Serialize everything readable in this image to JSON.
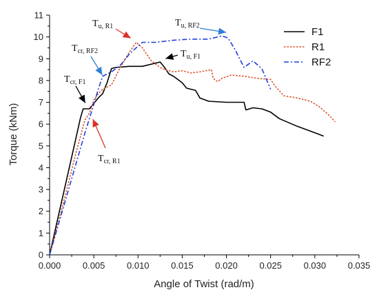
{
  "chart_data": {
    "type": "line",
    "xlabel": "Angle of Twist (rad/m)",
    "ylabel": "Torque (kNm)",
    "xlim": [
      0.0,
      0.035
    ],
    "ylim": [
      0,
      11
    ],
    "x_ticks": [
      "0.000",
      "0.005",
      "0.010",
      "0.015",
      "0.020",
      "0.025",
      "0.030",
      "0.035"
    ],
    "y_ticks": [
      "0",
      "1",
      "2",
      "3",
      "4",
      "5",
      "6",
      "7",
      "8",
      "9",
      "10",
      "11"
    ],
    "grid": false,
    "legend_position": "top-right",
    "series": [
      {
        "name": "F1",
        "color": "#000000",
        "style": "solid",
        "points": [
          [
            0.0,
            0.0
          ],
          [
            0.001,
            1.8
          ],
          [
            0.002,
            3.6
          ],
          [
            0.003,
            5.4
          ],
          [
            0.0035,
            6.3
          ],
          [
            0.0038,
            6.7
          ],
          [
            0.0045,
            6.7
          ],
          [
            0.0055,
            7.2
          ],
          [
            0.006,
            7.4
          ],
          [
            0.0065,
            7.9
          ],
          [
            0.007,
            8.55
          ],
          [
            0.0075,
            8.6
          ],
          [
            0.009,
            8.65
          ],
          [
            0.0105,
            8.65
          ],
          [
            0.012,
            8.8
          ],
          [
            0.0125,
            8.85
          ],
          [
            0.013,
            8.6
          ],
          [
            0.0135,
            8.3
          ],
          [
            0.014,
            8.2
          ],
          [
            0.015,
            7.9
          ],
          [
            0.0155,
            7.65
          ],
          [
            0.016,
            7.6
          ],
          [
            0.0165,
            7.55
          ],
          [
            0.017,
            7.2
          ],
          [
            0.018,
            7.05
          ],
          [
            0.02,
            7.0
          ],
          [
            0.021,
            7.0
          ],
          [
            0.022,
            7.0
          ],
          [
            0.0222,
            6.65
          ],
          [
            0.023,
            6.75
          ],
          [
            0.024,
            6.7
          ],
          [
            0.025,
            6.55
          ],
          [
            0.026,
            6.25
          ],
          [
            0.028,
            5.9
          ],
          [
            0.03,
            5.6
          ],
          [
            0.031,
            5.45
          ]
        ]
      },
      {
        "name": "R1",
        "color": "#d9532a",
        "style": "dotted",
        "points": [
          [
            0.0,
            0.0
          ],
          [
            0.001,
            1.5
          ],
          [
            0.002,
            3.1
          ],
          [
            0.003,
            4.7
          ],
          [
            0.004,
            6.2
          ],
          [
            0.0045,
            6.5
          ],
          [
            0.005,
            7.1
          ],
          [
            0.0055,
            7.4
          ],
          [
            0.006,
            7.6
          ],
          [
            0.007,
            7.8
          ],
          [
            0.008,
            8.6
          ],
          [
            0.009,
            9.3
          ],
          [
            0.0098,
            9.75
          ],
          [
            0.0105,
            9.5
          ],
          [
            0.0115,
            8.9
          ],
          [
            0.0125,
            8.6
          ],
          [
            0.013,
            8.5
          ],
          [
            0.014,
            8.4
          ],
          [
            0.015,
            8.45
          ],
          [
            0.016,
            8.35
          ],
          [
            0.017,
            8.4
          ],
          [
            0.0183,
            8.5
          ],
          [
            0.0185,
            8.1
          ],
          [
            0.019,
            7.95
          ],
          [
            0.0195,
            8.1
          ],
          [
            0.0205,
            8.25
          ],
          [
            0.022,
            8.2
          ],
          [
            0.0235,
            8.1
          ],
          [
            0.025,
            8.05
          ],
          [
            0.0255,
            7.75
          ],
          [
            0.0265,
            7.3
          ],
          [
            0.028,
            7.2
          ],
          [
            0.0295,
            7.05
          ],
          [
            0.0305,
            6.8
          ],
          [
            0.0315,
            6.45
          ],
          [
            0.0323,
            6.1
          ]
        ]
      },
      {
        "name": "RF2",
        "color": "#1f3fd6",
        "style": "dashdot",
        "points": [
          [
            0.0,
            0.0
          ],
          [
            0.001,
            1.4
          ],
          [
            0.002,
            2.8
          ],
          [
            0.003,
            4.2
          ],
          [
            0.004,
            5.6
          ],
          [
            0.005,
            6.9
          ],
          [
            0.0055,
            7.6
          ],
          [
            0.006,
            8.2
          ],
          [
            0.007,
            8.4
          ],
          [
            0.008,
            8.7
          ],
          [
            0.009,
            9.2
          ],
          [
            0.0095,
            9.4
          ],
          [
            0.0105,
            9.75
          ],
          [
            0.012,
            9.75
          ],
          [
            0.014,
            9.85
          ],
          [
            0.016,
            9.9
          ],
          [
            0.018,
            9.9
          ],
          [
            0.0195,
            10.05
          ],
          [
            0.0202,
            9.95
          ],
          [
            0.021,
            9.4
          ],
          [
            0.022,
            8.6
          ],
          [
            0.023,
            8.9
          ],
          [
            0.024,
            8.55
          ],
          [
            0.025,
            7.6
          ]
        ]
      }
    ],
    "annotations": [
      {
        "id": "tu-r1",
        "main": "T",
        "sub": "u, R1",
        "at": [
          0.0098,
          9.75
        ],
        "color": "#d9332a"
      },
      {
        "id": "tu-rf2",
        "main": "T",
        "sub": "u, RF2",
        "at": [
          0.0195,
          10.05
        ],
        "color": "#2d7fd6"
      },
      {
        "id": "tu-f1",
        "main": "T",
        "sub": "u, F1",
        "at": [
          0.0125,
          8.85
        ],
        "color": "#000000"
      },
      {
        "id": "tcr-rf2",
        "main": "T",
        "sub": "cr, RF2",
        "at": [
          0.0058,
          8.0
        ],
        "color": "#2d7fd6"
      },
      {
        "id": "tcr-f1",
        "main": "T",
        "sub": "cr, F1",
        "at": [
          0.0038,
          6.75
        ],
        "color": "#000000"
      },
      {
        "id": "tcr-r1",
        "main": "T",
        "sub": "cr, R1",
        "at": [
          0.0045,
          6.45
        ],
        "color": "#d9332a"
      }
    ]
  }
}
